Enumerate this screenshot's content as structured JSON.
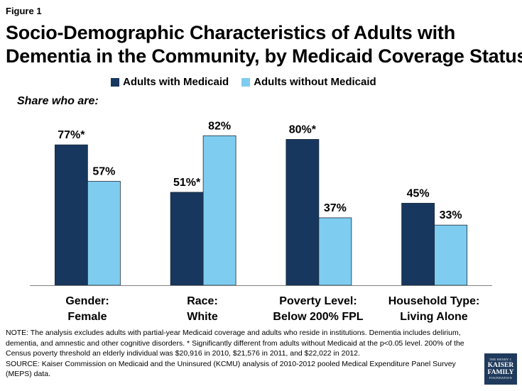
{
  "figure": {
    "label": "Figure 1"
  },
  "title": {
    "line1": "Socio-Demographic Characteristics of Adults with",
    "line2": "Dementia in the Community, by Medicaid Coverage Status"
  },
  "subtitle": "Share who are:",
  "colors": {
    "medicaid": "#17375e",
    "no_medicaid": "#7ecdf0",
    "axis": "#808080"
  },
  "chart_data": {
    "type": "bar",
    "title": "Socio-Demographic Characteristics of Adults with Dementia in the Community, by Medicaid Coverage Status",
    "categories": [
      {
        "line1": "Gender:",
        "line2": "Female"
      },
      {
        "line1": "Race:",
        "line2": "White"
      },
      {
        "line1": "Poverty Level:",
        "line2": "Below 200% FPL"
      },
      {
        "line1": "Household Type:",
        "line2": "Living Alone"
      }
    ],
    "series": [
      {
        "name": "Adults with Medicaid",
        "values": [
          77,
          51,
          80,
          45
        ],
        "labels": [
          "77%*",
          "51%*",
          "80%*",
          "45%"
        ]
      },
      {
        "name": "Adults without Medicaid",
        "values": [
          57,
          82,
          37,
          33
        ],
        "labels": [
          "57%",
          "82%",
          "37%",
          "33%"
        ]
      }
    ],
    "ylim": [
      0,
      100
    ],
    "ylabel": "Share who are:",
    "xlabel": "",
    "legend": "top",
    "grid": false
  },
  "notes": {
    "note": "NOTE: The analysis excludes adults with partial-year Medicaid coverage and adults who reside in institutions. Dementia includes delirium, dementia, and amnestic and other cognitive disorders. * Significantly different from adults without Medicaid at the p<0.05 level. 200% of the Census poverty threshold an elderly individual was $20,916 in 2010, $21,576 in 2011, and $22,022 in 2012.",
    "source": "SOURCE: Kaiser Commission on Medicaid and the Uninsured (KCMU) analysis of 2010-2012 pooled Medical Expenditure Panel Survey (MEPS) data."
  },
  "logo": {
    "line1": "THE HENRY J.",
    "line2": "KAISER",
    "line3": "FAMILY",
    "line4": "FOUNDATION"
  }
}
